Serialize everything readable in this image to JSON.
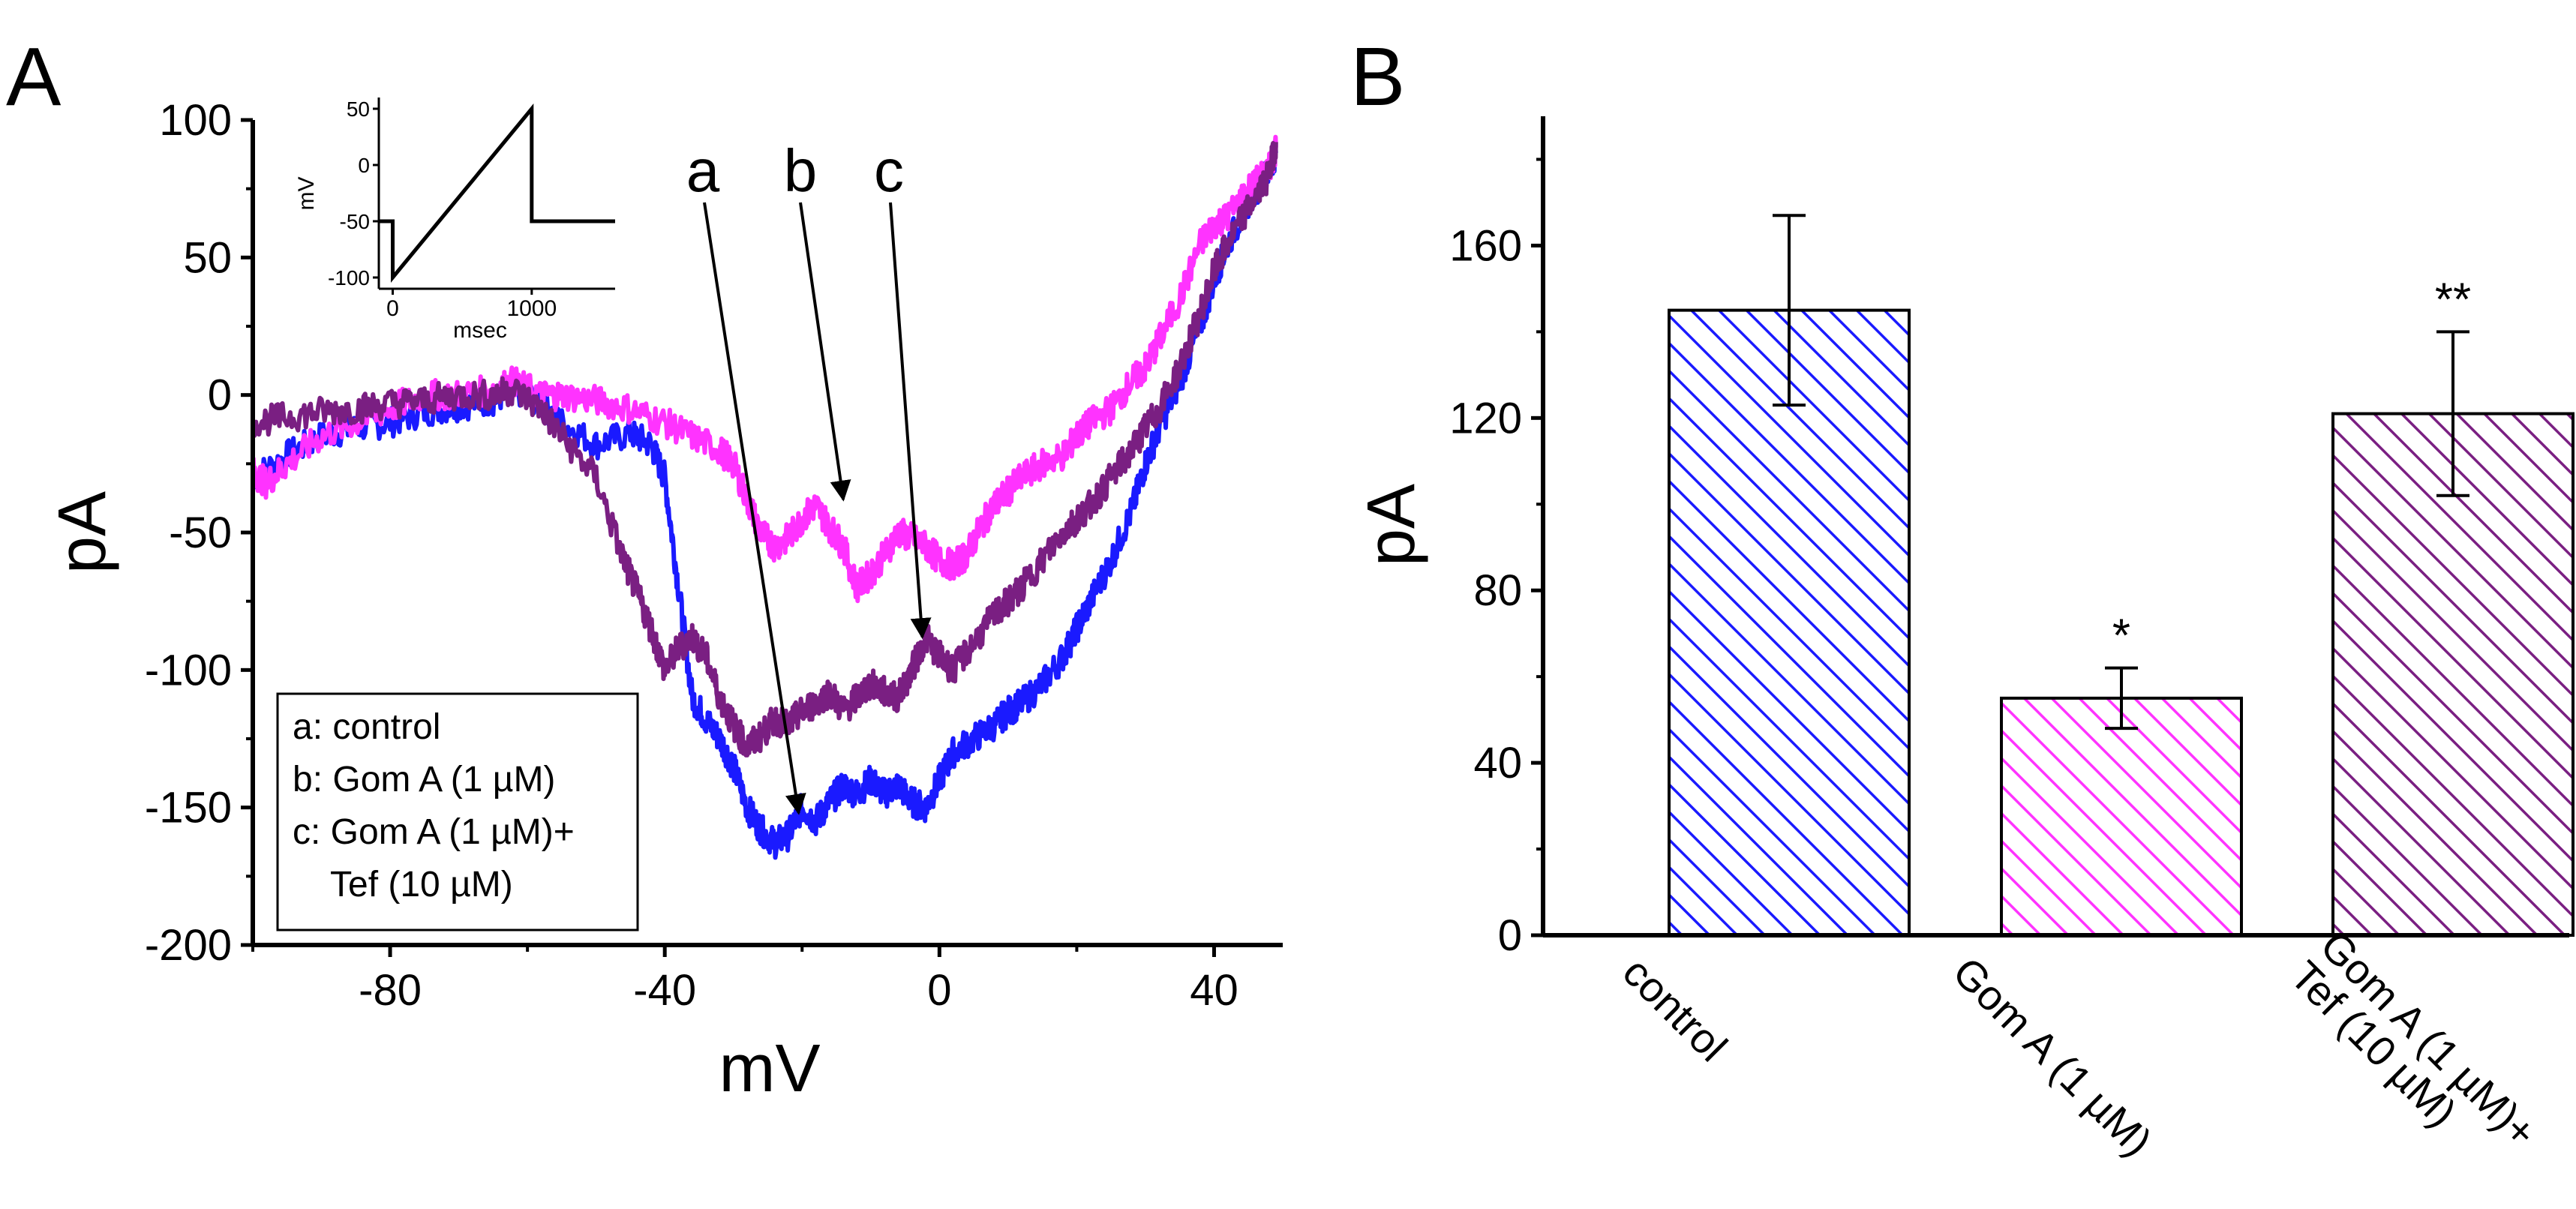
{
  "panels": {
    "a_label": "A",
    "b_label": "B"
  },
  "colors": {
    "control": "#1a1aff",
    "gomA": "#ff33ff",
    "gomA_tef": "#7a1f82",
    "axis": "#000000"
  },
  "chart_data": [
    {
      "id": "A",
      "type": "line",
      "xlabel": "mV",
      "ylabel": "pA",
      "xlim": [
        -100,
        50
      ],
      "ylim": [
        -200,
        100
      ],
      "xticks": [
        -80,
        -40,
        0,
        40
      ],
      "xtick_labels": [
        "-80",
        "-40",
        "0",
        "40"
      ],
      "yticks": [
        -200,
        -150,
        -100,
        -50,
        0,
        50,
        100
      ],
      "ytick_labels": [
        "-200",
        "-150",
        "-100",
        "-50",
        "0",
        "50",
        "100"
      ],
      "series": [
        {
          "name": "a: control",
          "color": "#1a1aff",
          "x": [
            -100,
            -95,
            -90,
            -85,
            -80,
            -75,
            -70,
            -65,
            -62,
            -58,
            -55,
            -50,
            -45,
            -42,
            -40,
            -38,
            -36,
            -34,
            -32,
            -30,
            -28,
            -26,
            -24,
            -22,
            -20,
            -18,
            -16,
            -14,
            -12,
            -10,
            -8,
            -6,
            -4,
            -2,
            0,
            2,
            5,
            8,
            10,
            12,
            15,
            18,
            20,
            22,
            25,
            28,
            30,
            32,
            35,
            38,
            40,
            42,
            45,
            48,
            49
          ],
          "y": [
            -30,
            -22,
            -15,
            -12,
            -10,
            -6,
            -4,
            -2,
            2,
            -3,
            -10,
            -18,
            -14,
            -18,
            -30,
            -70,
            -110,
            -118,
            -125,
            -135,
            -150,
            -158,
            -163,
            -160,
            -150,
            -155,
            -148,
            -142,
            -145,
            -140,
            -145,
            -142,
            -148,
            -150,
            -140,
            -130,
            -125,
            -120,
            -115,
            -112,
            -105,
            -95,
            -85,
            -75,
            -60,
            -42,
            -25,
            -12,
            5,
            25,
            42,
            55,
            70,
            82,
            88
          ]
        },
        {
          "name": "b: Gom A (1 µM)",
          "color": "#ff33ff",
          "x": [
            -100,
            -98,
            -95,
            -90,
            -85,
            -80,
            -75,
            -70,
            -65,
            -62,
            -58,
            -55,
            -50,
            -45,
            -40,
            -36,
            -32,
            -30,
            -28,
            -26,
            -24,
            -22,
            -20,
            -18,
            -16,
            -14,
            -12,
            -10,
            -8,
            -6,
            -4,
            -2,
            0,
            2,
            4,
            6,
            8,
            10,
            12,
            15,
            18,
            20,
            22,
            25,
            28,
            30,
            32,
            35,
            38,
            40,
            42,
            45,
            48,
            49
          ],
          "y": [
            -28,
            -32,
            -25,
            -15,
            -10,
            -5,
            0,
            0,
            2,
            5,
            0,
            0,
            -2,
            -5,
            -10,
            -15,
            -20,
            -25,
            -38,
            -50,
            -55,
            -52,
            -45,
            -40,
            -48,
            -55,
            -70,
            -65,
            -58,
            -50,
            -52,
            -55,
            -60,
            -62,
            -58,
            -48,
            -40,
            -35,
            -30,
            -25,
            -22,
            -15,
            -10,
            -5,
            5,
            10,
            20,
            35,
            55,
            62,
            65,
            75,
            82,
            90
          ]
        },
        {
          "name": "c: Gom A (1 µM)+ Tef (10 µM)",
          "color": "#7a1f82",
          "x": [
            -100,
            -95,
            -90,
            -85,
            -80,
            -75,
            -70,
            -65,
            -62,
            -58,
            -55,
            -50,
            -46,
            -44,
            -42,
            -40,
            -38,
            -36,
            -34,
            -32,
            -30,
            -28,
            -26,
            -24,
            -22,
            -20,
            -18,
            -16,
            -14,
            -12,
            -10,
            -8,
            -6,
            -4,
            -2,
            0,
            2,
            5,
            8,
            10,
            12,
            15,
            18,
            20,
            22,
            25,
            28,
            30,
            32,
            35,
            38,
            40,
            42,
            45,
            48,
            49
          ],
          "y": [
            -10,
            -8,
            -6,
            -5,
            -3,
            -2,
            0,
            0,
            2,
            -5,
            -15,
            -30,
            -60,
            -72,
            -85,
            -100,
            -92,
            -88,
            -95,
            -110,
            -120,
            -128,
            -124,
            -118,
            -120,
            -115,
            -112,
            -108,
            -115,
            -110,
            -105,
            -108,
            -110,
            -100,
            -88,
            -95,
            -100,
            -90,
            -80,
            -75,
            -70,
            -60,
            -50,
            -45,
            -40,
            -30,
            -20,
            -12,
            -5,
            10,
            30,
            45,
            55,
            68,
            80,
            92
          ]
        }
      ],
      "annotations": [
        {
          "label": "a",
          "x": -20.5,
          "y": -152
        },
        {
          "label": "b",
          "x": -14,
          "y": -38
        },
        {
          "label": "c",
          "x": -2.5,
          "y": -88
        }
      ],
      "legend": {
        "placement": "bottom-left",
        "lines": [
          "a: control",
          "b: Gom A (1 µM)",
          "c: Gom A (1 µM)+",
          "Tef (10 µM)"
        ]
      },
      "inset": {
        "type": "line",
        "xlabel": "msec",
        "ylabel": "mV",
        "xlim": [
          -100,
          1600
        ],
        "ylim": [
          -110,
          60
        ],
        "xticks": [
          0,
          1000
        ],
        "xtick_labels": [
          "0",
          "1000"
        ],
        "yticks": [
          -100,
          -50,
          0,
          50
        ],
        "ytick_labels": [
          "-100",
          "-50",
          "0",
          "50"
        ],
        "x": [
          -100,
          0,
          0,
          1000,
          1000,
          1600
        ],
        "y": [
          -50,
          -50,
          -100,
          50,
          -50,
          -50
        ]
      }
    },
    {
      "id": "B",
      "type": "bar",
      "ylabel": "pA",
      "ylim": [
        0,
        190
      ],
      "yticks": [
        0,
        40,
        80,
        120,
        160
      ],
      "ytick_labels": [
        "0",
        "40",
        "80",
        "120",
        "160"
      ],
      "categories": [
        "control",
        "Gom A (1 µM)",
        "Gom A (1 µM)+ Tef (10 µM)"
      ],
      "category_lines": [
        [
          "control"
        ],
        [
          "Gom A (1 µM)"
        ],
        [
          "Gom A (1 µM)+",
          "Tef (10 µM)"
        ]
      ],
      "values": [
        145,
        55,
        121
      ],
      "errors": [
        22,
        7,
        19
      ],
      "significance": [
        "",
        "*",
        "**"
      ],
      "colors": [
        "#1a1aff",
        "#ff33ff",
        "#7a1f82"
      ]
    }
  ]
}
